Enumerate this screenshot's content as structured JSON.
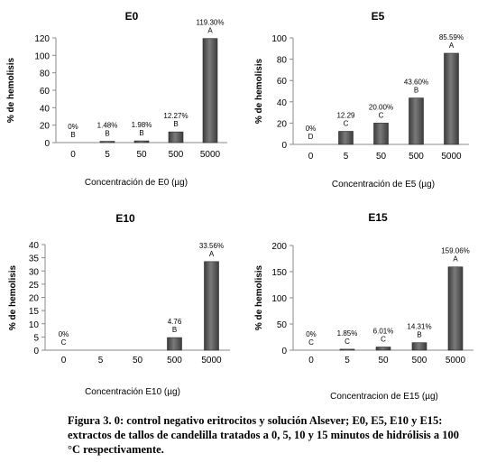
{
  "caption": "Figura 3. 0: control negativo eritrocitos y solución Alsever; E0, E5, E10 y E15: extractos de tallos de candelilla tratados a 0, 5, 10 y 15 minutos de hidrólisis a 100 °C respectivamente.",
  "colors": {
    "bar": "#3d3d3d",
    "bar_highlight": "#7a7a7a",
    "axis": "#888888",
    "text": "#000000"
  },
  "chart_data": [
    {
      "type": "bar",
      "title": "E0",
      "xlabel": "Concentración de E0 (µg)",
      "ylabel": "% de hemolisis",
      "categories": [
        "0",
        "5",
        "50",
        "500",
        "5000"
      ],
      "values": [
        0,
        1.48,
        1.98,
        12.27,
        119.3
      ],
      "data_labels": [
        "0%",
        "1.48%",
        "1.98%",
        "12.27%",
        "119.30%"
      ],
      "letters": [
        "B",
        "B",
        "B",
        "B",
        "A"
      ],
      "ylim": [
        0,
        120
      ],
      "yticks": [
        "0",
        "20",
        "40",
        "60",
        "80",
        "100",
        "120"
      ],
      "grid": false
    },
    {
      "type": "bar",
      "title": "E5",
      "xlabel": "Concentración de E5 (µg)",
      "ylabel": "% de hemolisis",
      "categories": [
        "0",
        "5",
        "50",
        "500",
        "5000"
      ],
      "values": [
        0,
        12.29,
        20.0,
        43.6,
        85.59
      ],
      "data_labels": [
        "0%",
        "12.29",
        "20.00%",
        "43.60%",
        "85.59%"
      ],
      "letters": [
        "D",
        "C",
        "C",
        "B",
        "A"
      ],
      "ylim": [
        0,
        100
      ],
      "yticks": [
        "0",
        "20",
        "40",
        "60",
        "80",
        "100"
      ],
      "grid": false
    },
    {
      "type": "bar",
      "title": "E10",
      "xlabel": "Concentración E10 (µg)",
      "ylabel": "% de hemolisis",
      "categories": [
        "0",
        "5",
        "50",
        "500",
        "5000"
      ],
      "values": [
        0,
        null,
        null,
        4.76,
        33.56
      ],
      "data_labels": [
        "0%",
        "",
        "",
        "4.76",
        "33.56%"
      ],
      "letters": [
        "C",
        "",
        "",
        "B",
        "A"
      ],
      "ylim": [
        0,
        40
      ],
      "yticks": [
        "0",
        "5",
        "10",
        "15",
        "20",
        "25",
        "30",
        "35",
        "40"
      ],
      "grid": false
    },
    {
      "type": "bar",
      "title": "E15",
      "xlabel": "Concentracion de E15 (µg)",
      "ylabel": "% de hemolisis",
      "categories": [
        "0",
        "5",
        "50",
        "500",
        "5000"
      ],
      "values": [
        0,
        1.85,
        6.01,
        14.31,
        159.06
      ],
      "data_labels": [
        "0%",
        "1.85%",
        "6.01%",
        "14.31%",
        "159.06%"
      ],
      "letters": [
        "C",
        "C",
        "C",
        "B",
        "A"
      ],
      "ylim": [
        0,
        200
      ],
      "yticks": [
        "0",
        "50",
        "100",
        "150",
        "200"
      ],
      "grid": false
    }
  ]
}
